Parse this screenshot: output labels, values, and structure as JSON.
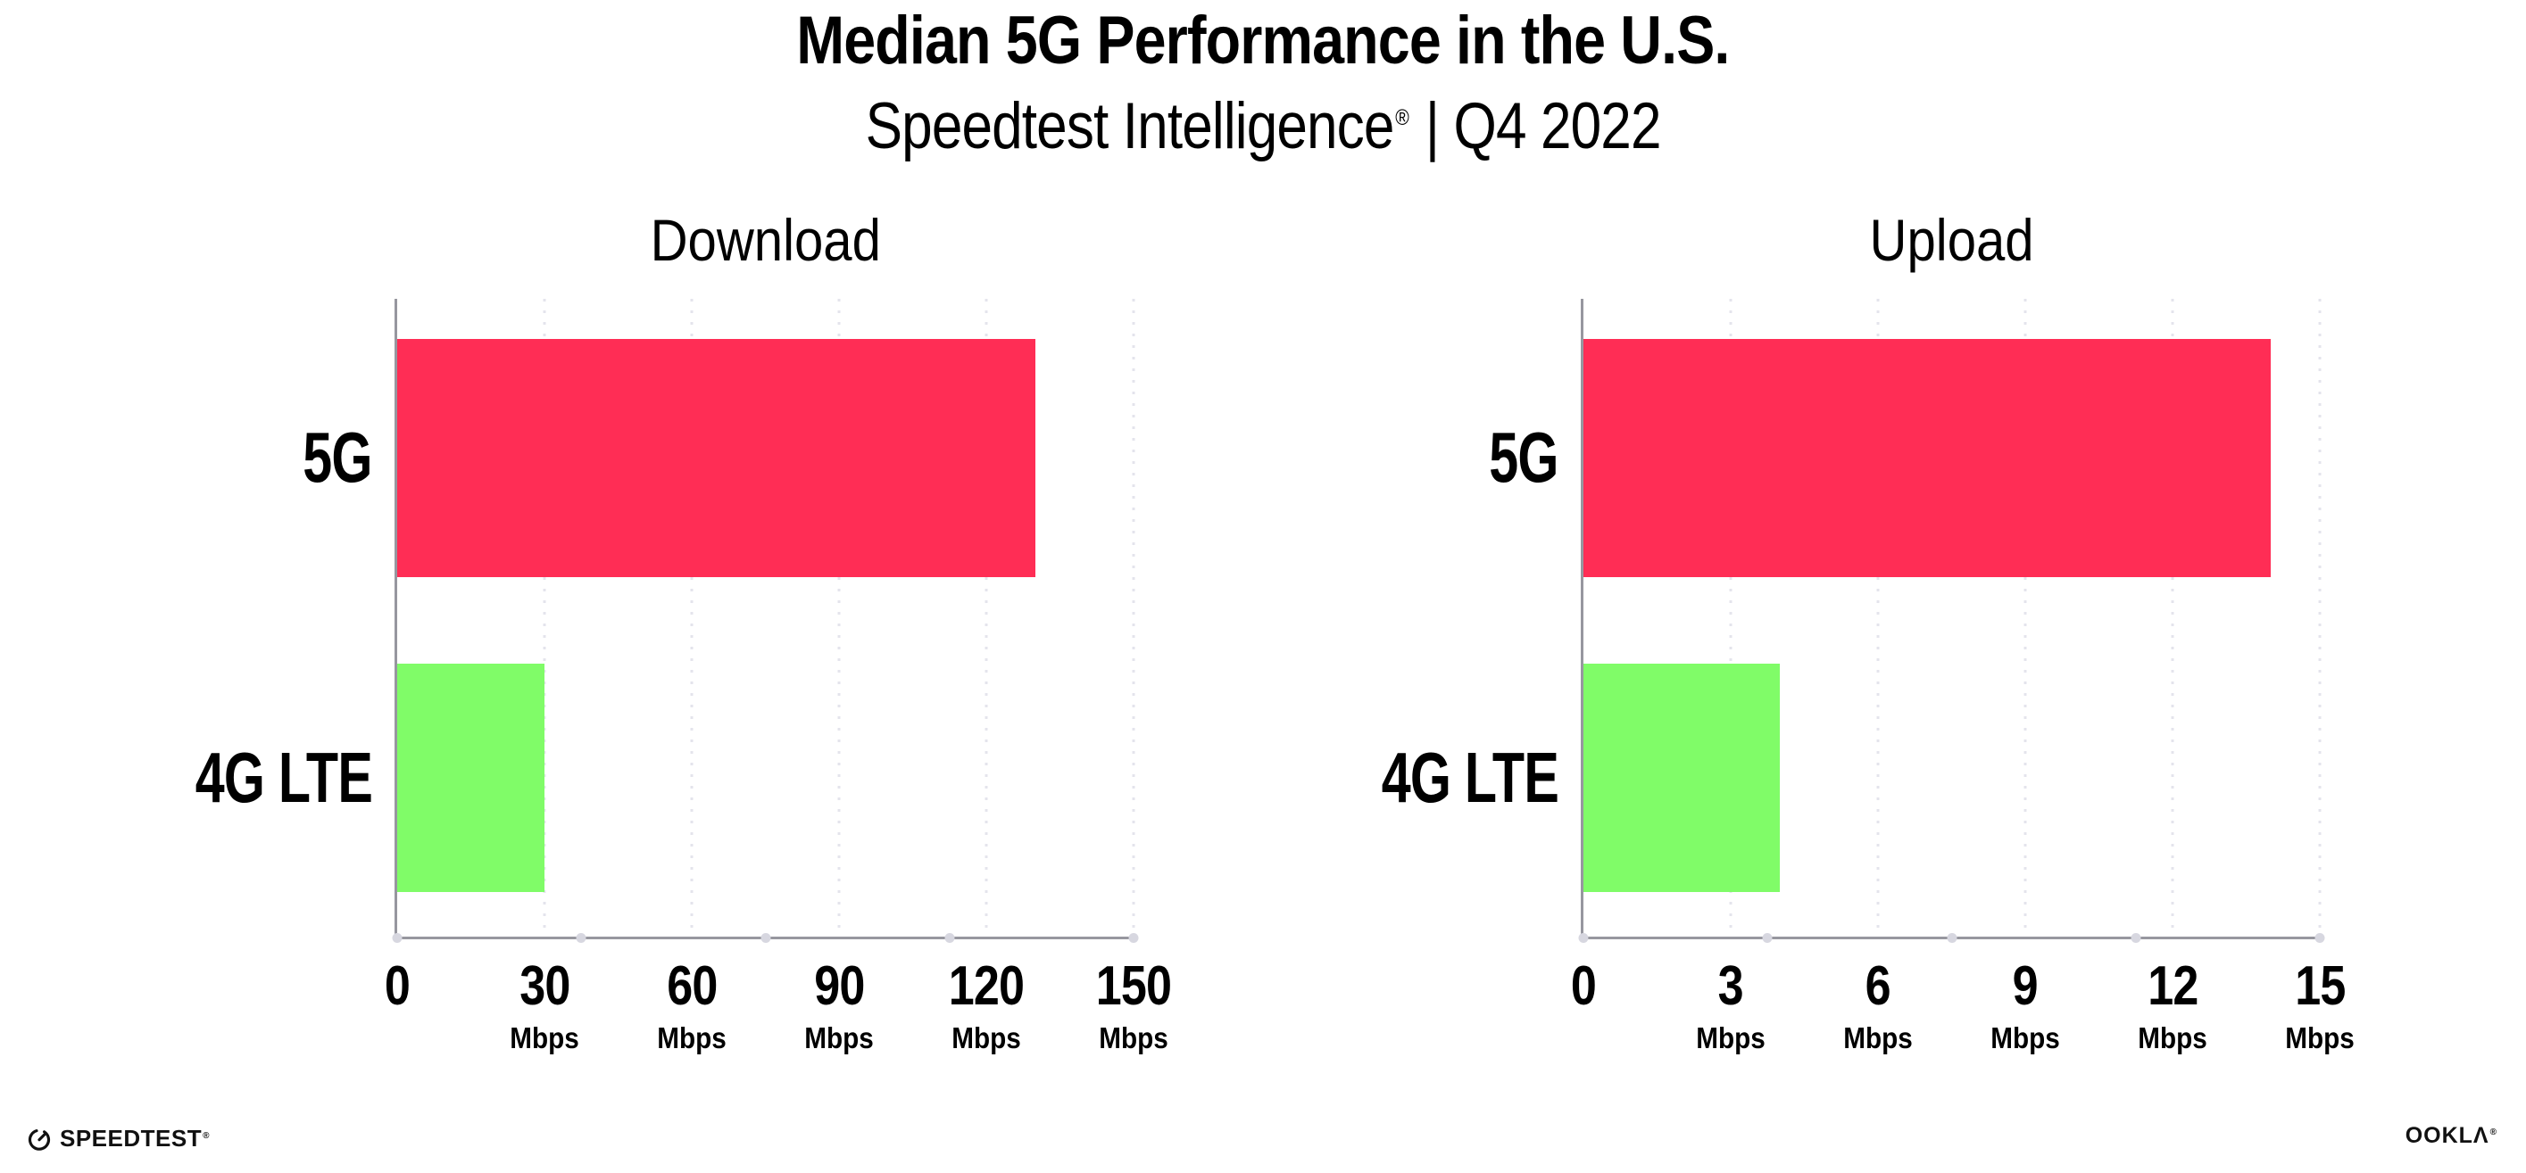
{
  "header": {
    "title": "Median 5G Performance in the U.S.",
    "subtitle": "Speedtest Intelligence",
    "subtitle_registered_mark": "®",
    "subtitle_suffix": " | Q4 2022"
  },
  "chart_data": [
    {
      "type": "bar",
      "orientation": "horizontal",
      "title": "Download",
      "categories": [
        "5G",
        "4G LTE"
      ],
      "values": [
        130,
        30
      ],
      "unit": "Mbps",
      "xlim": [
        0,
        150
      ],
      "xticks": [
        0,
        30,
        60,
        90,
        120,
        150
      ],
      "bar_colors": [
        "#FF2D55",
        "#80FC68"
      ],
      "grid": "vertical-dotted",
      "legend": "none"
    },
    {
      "type": "bar",
      "orientation": "horizontal",
      "title": "Upload",
      "categories": [
        "5G",
        "4G LTE"
      ],
      "values": [
        14,
        4
      ],
      "unit": "Mbps",
      "xlim": [
        0,
        15
      ],
      "xticks": [
        0,
        3,
        6,
        9,
        12,
        15
      ],
      "bar_colors": [
        "#FF2D55",
        "#80FC68"
      ],
      "grid": "vertical-dotted",
      "legend": "none"
    }
  ],
  "footer": {
    "speedtest_label": "SPEEDTEST",
    "speedtest_mark": "®",
    "ookla_label": "OOKLΛ",
    "ookla_mark": "®"
  },
  "colors": {
    "bar_5g": "#FF2D55",
    "bar_4g_lte": "#80FC68",
    "axis": "#97979F",
    "gridline": "#E4E4EC",
    "axis_dot": "#D7D7E0",
    "text": "#111111",
    "background": "#FFFFFF"
  }
}
